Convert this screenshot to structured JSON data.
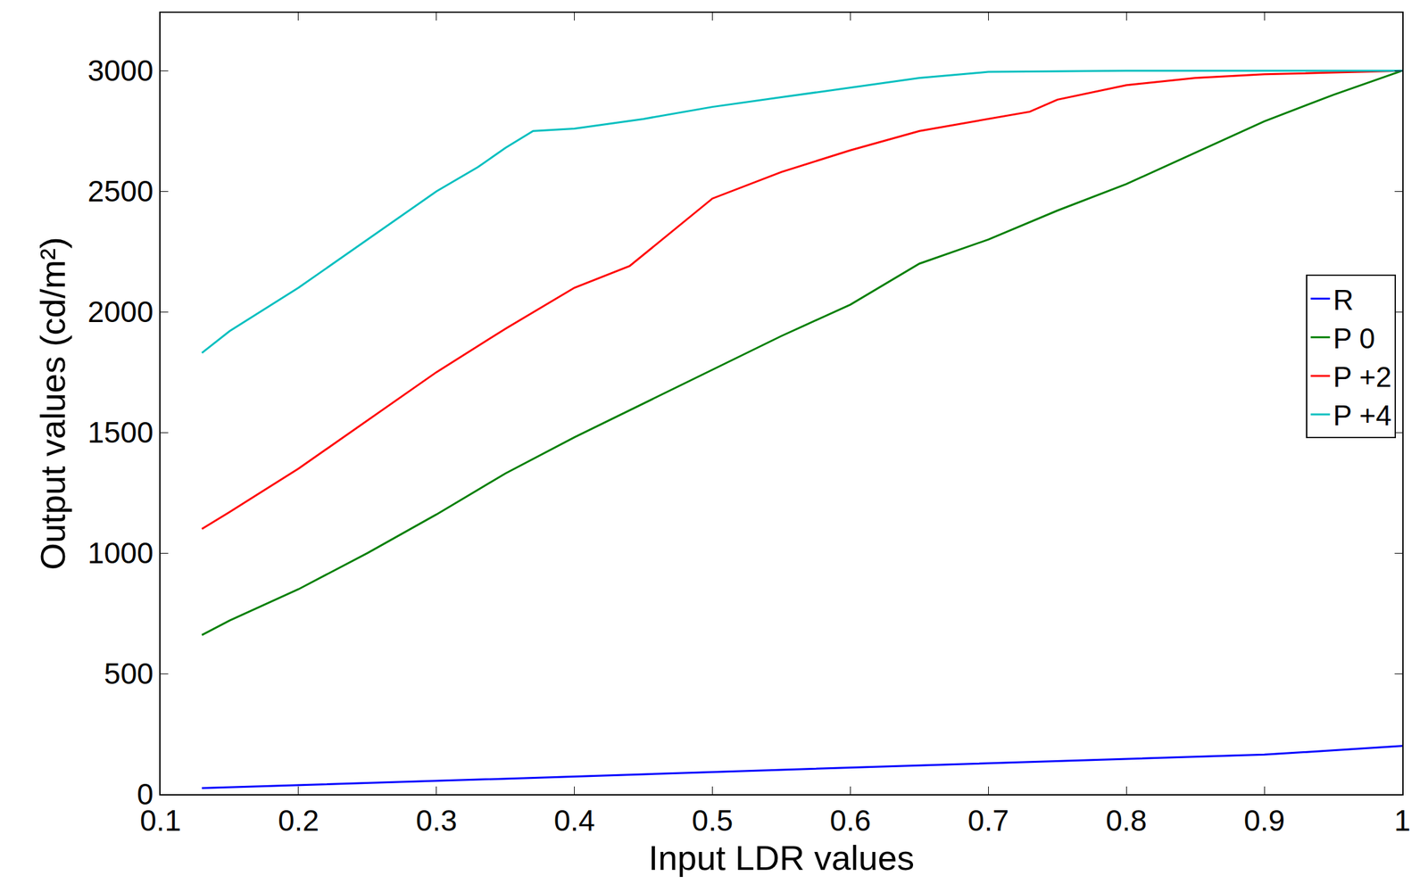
{
  "chart_data": {
    "type": "line",
    "x_label": "Input LDR values",
    "y_label": "Output values (cd/m²)",
    "xlim": [
      0.1,
      1
    ],
    "xticks": [
      0.1,
      0.2,
      0.3,
      0.4,
      0.5,
      0.6,
      0.7,
      0.8,
      0.9,
      1
    ],
    "ylim": [
      0,
      3240
    ],
    "yticks": [
      0,
      500,
      1000,
      1500,
      2000,
      2500,
      3000
    ],
    "grid": false,
    "legend": "right",
    "series": [
      {
        "name": "R",
        "color": "#0000ff",
        "x": [
          0.13,
          0.2,
          0.3,
          0.4,
          0.5,
          0.6,
          0.7,
          0.8,
          0.9,
          1
        ],
        "values": [
          25,
          37,
          55,
          73,
          92,
          110,
          128,
          146,
          164,
          200
        ]
      },
      {
        "name": "P 0",
        "color": "#007f00",
        "x": [
          0.13,
          0.15,
          0.2,
          0.25,
          0.3,
          0.35,
          0.4,
          0.45,
          0.5,
          0.55,
          0.6,
          0.65,
          0.7,
          0.75,
          0.8,
          0.85,
          0.9,
          0.95,
          1
        ],
        "values": [
          660,
          720,
          850,
          1000,
          1160,
          1330,
          1480,
          1620,
          1760,
          1900,
          2030,
          2200,
          2300,
          2420,
          2530,
          2660,
          2790,
          2900,
          3000
        ]
      },
      {
        "name": "P +2",
        "color": "#ff0000",
        "x": [
          0.13,
          0.15,
          0.2,
          0.25,
          0.3,
          0.35,
          0.4,
          0.44,
          0.5,
          0.55,
          0.6,
          0.65,
          0.7,
          0.73,
          0.75,
          0.8,
          0.85,
          0.9,
          1
        ],
        "values": [
          1100,
          1170,
          1350,
          1550,
          1750,
          1930,
          2100,
          2190,
          2470,
          2580,
          2670,
          2750,
          2800,
          2830,
          2880,
          2940,
          2970,
          2985,
          3000
        ]
      },
      {
        "name": "P +4",
        "color": "#00bfbf",
        "x": [
          0.13,
          0.15,
          0.2,
          0.25,
          0.28,
          0.3,
          0.33,
          0.35,
          0.37,
          0.4,
          0.45,
          0.5,
          0.55,
          0.6,
          0.65,
          0.7,
          0.8,
          0.9,
          1
        ],
        "values": [
          1830,
          1920,
          2100,
          2300,
          2420,
          2500,
          2600,
          2680,
          2750,
          2760,
          2800,
          2850,
          2890,
          2930,
          2970,
          2995,
          3000,
          3000,
          3000
        ]
      }
    ]
  }
}
